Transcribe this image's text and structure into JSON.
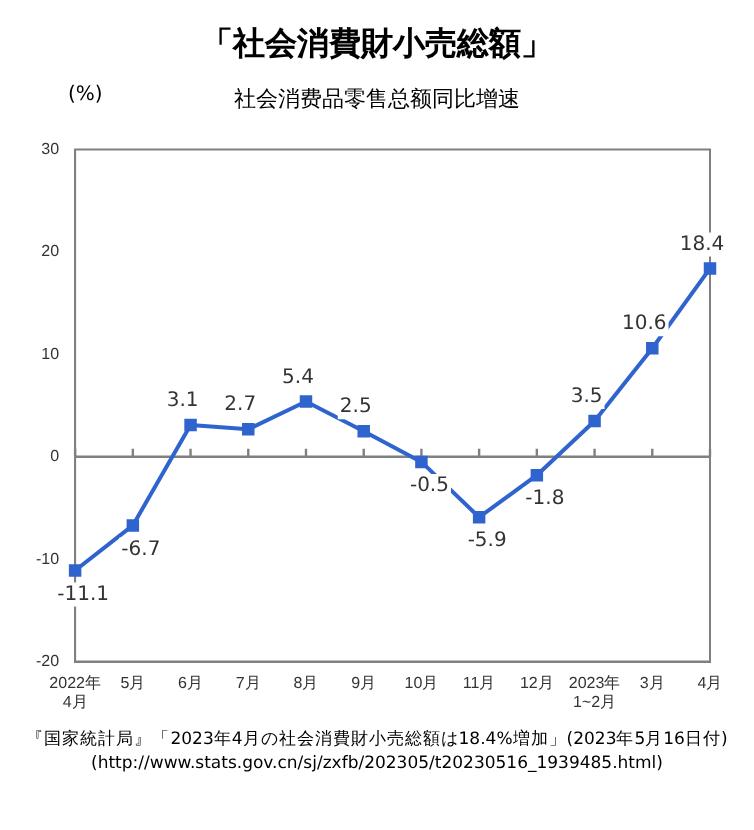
{
  "chart_data": {
    "type": "line",
    "title": "「社会消費財小売総額」",
    "subtitle": "社会消费品零售总额同比增速",
    "ylabel": "(%)",
    "categories": [
      "2022年\n4月",
      "5月",
      "6月",
      "7月",
      "8月",
      "9月",
      "10月",
      "11月",
      "12月",
      "2023年\n1~2月",
      "3月",
      "4月"
    ],
    "series": [
      {
        "color": "#2f64cf",
        "values": [
          -11.1,
          -6.7,
          3.1,
          2.7,
          5.4,
          2.5,
          -0.5,
          -5.9,
          -1.8,
          3.5,
          10.6,
          18.4
        ]
      }
    ],
    "ylim": [
      -20,
      30
    ],
    "yticks": [
      -20,
      -10,
      0,
      10,
      20,
      30
    ],
    "grid": false,
    "legend": false,
    "marker": "square",
    "line_style": "solid",
    "data_labels": true,
    "ref_lines": [
      {
        "axis": "y",
        "value": 0,
        "color": "#808080"
      }
    ],
    "annotations": [
      "『国家統計局』「2023年4月の社会消費財小売総額は18.4%増加」(2023年5月16日付)",
      "(http://www.stats.gov.cn/sj/zxfb/202305/t20230516_1939485.html)"
    ]
  }
}
